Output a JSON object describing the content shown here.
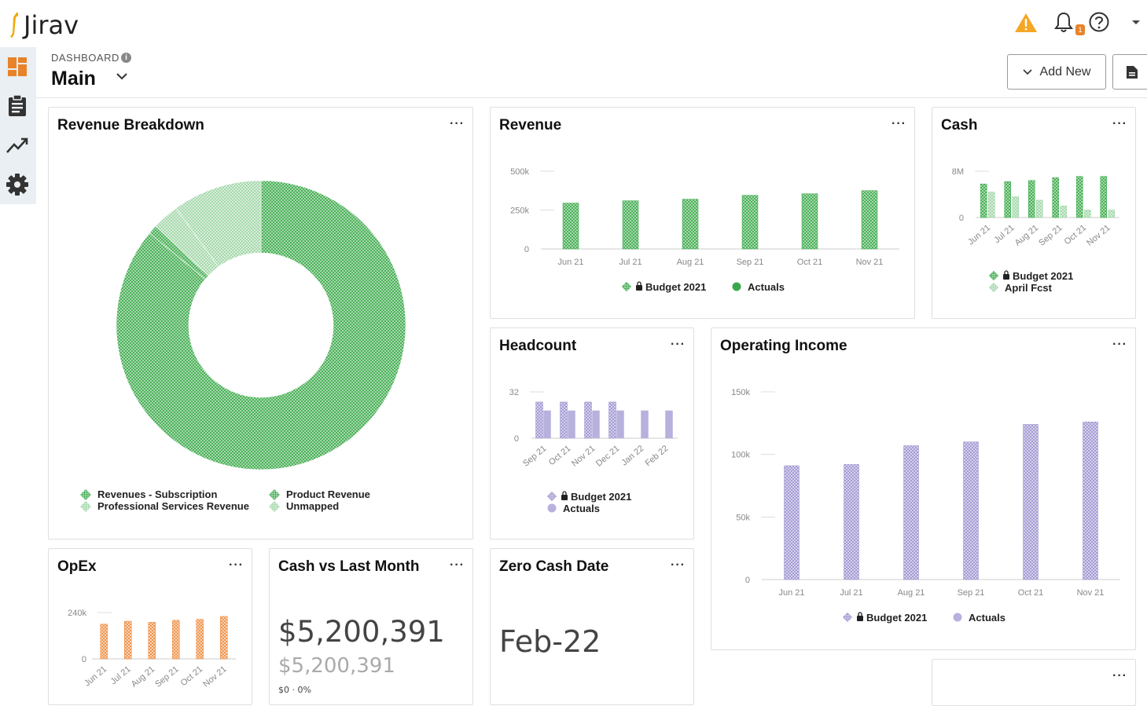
{
  "app": {
    "logo_text": "Jirav",
    "notification_count": "1"
  },
  "header": {
    "breadcrumb": "DASHBOARD",
    "title": "Main",
    "add_new_label": "Add New"
  },
  "sidebar": {
    "items": [
      {
        "icon": "dashboard-icon"
      },
      {
        "icon": "clipboard-icon"
      },
      {
        "icon": "trend-icon"
      },
      {
        "icon": "gear-icon"
      }
    ]
  },
  "colors": {
    "green": "#3aa84a",
    "green_light": "#a9dbae",
    "purple": "#aaa3d6",
    "orange": "#ee8a3c",
    "accent": "#e8832a"
  },
  "cards": {
    "revenue_breakdown": {
      "title": "Revenue Breakdown",
      "menu": "···"
    },
    "revenue": {
      "title": "Revenue",
      "menu": "···"
    },
    "cash": {
      "title": "Cash",
      "menu": "···"
    },
    "headcount": {
      "title": "Headcount",
      "menu": "···"
    },
    "operating_income": {
      "title": "Operating Income",
      "menu": "···"
    },
    "opex": {
      "title": "OpEx",
      "menu": "···"
    },
    "cash_vs_last_month": {
      "title": "Cash vs Last Month",
      "menu": "···",
      "value": "$5,200,391",
      "previous": "$5,200,391",
      "change": "$0 · 0%"
    },
    "zero_cash_date": {
      "title": "Zero Cash Date",
      "menu": "···",
      "value": "Feb-22"
    },
    "empty": {
      "menu": "···"
    }
  },
  "chart_data": [
    {
      "id": "revenue_breakdown",
      "type": "pie",
      "labels": [
        "Revenues - Subscription",
        "Product Revenue",
        "Professional Services Revenue",
        "Unmapped"
      ],
      "values": [
        86,
        1,
        3,
        10
      ]
    },
    {
      "id": "revenue",
      "type": "bar",
      "categories": [
        "Jun 21",
        "Jul 21",
        "Aug 21",
        "Sep 21",
        "Oct 21",
        "Nov 21"
      ],
      "yticks": [
        "500k",
        "250k",
        "0"
      ],
      "ylim": [
        0,
        500000
      ],
      "series": [
        {
          "name": "Budget 2021",
          "values": [
            295000,
            310000,
            320000,
            345000,
            355000,
            375000
          ]
        }
      ],
      "legend": [
        "Budget 2021",
        "Actuals"
      ]
    },
    {
      "id": "cash",
      "type": "bar",
      "categories": [
        "Jun 21",
        "Jul 21",
        "Aug 21",
        "Sep 21",
        "Oct 21",
        "Nov 21"
      ],
      "yticks": [
        "8M",
        "0"
      ],
      "ylim": [
        0,
        8000000
      ],
      "series": [
        {
          "name": "Budget 2021",
          "values": [
            5800000,
            6200000,
            6400000,
            6900000,
            7100000,
            7100000
          ]
        },
        {
          "name": "April Fcst",
          "values": [
            4400000,
            3600000,
            3000000,
            2000000,
            1300000,
            1300000
          ]
        }
      ],
      "legend": [
        "Budget 2021",
        "April Fcst"
      ]
    },
    {
      "id": "headcount",
      "type": "bar",
      "categories": [
        "Sep 21",
        "Oct 21",
        "Nov 21",
        "Dec 21",
        "Jan 22",
        "Feb 22"
      ],
      "yticks": [
        "32",
        "0"
      ],
      "ylim": [
        0,
        32
      ],
      "series": [
        {
          "name": "Budget 2021",
          "values": [
            25,
            25,
            25,
            25,
            null,
            null
          ]
        },
        {
          "name": "Actuals",
          "values": [
            19,
            19,
            19,
            19,
            19,
            19
          ]
        }
      ],
      "legend": [
        "Budget 2021",
        "Actuals"
      ]
    },
    {
      "id": "operating_income",
      "type": "bar",
      "categories": [
        "Jun 21",
        "Jul 21",
        "Aug 21",
        "Sep 21",
        "Oct 21",
        "Nov 21"
      ],
      "yticks": [
        "150k",
        "100k",
        "50k",
        "0"
      ],
      "ylim": [
        0,
        150000
      ],
      "series": [
        {
          "name": "Budget 2021",
          "values": [
            91000,
            92000,
            107000,
            110000,
            124000,
            126000
          ]
        }
      ],
      "legend": [
        "Budget 2021",
        "Actuals"
      ]
    },
    {
      "id": "opex",
      "type": "bar",
      "categories": [
        "Jun 21",
        "Jul 21",
        "Aug 21",
        "Sep 21",
        "Oct 21",
        "Nov 21"
      ],
      "yticks": [
        "240k",
        "0"
      ],
      "ylim": [
        0,
        240000
      ],
      "series": [
        {
          "name": "Budget 2021",
          "values": [
            180000,
            195000,
            190000,
            200000,
            205000,
            220000
          ]
        }
      ]
    }
  ]
}
